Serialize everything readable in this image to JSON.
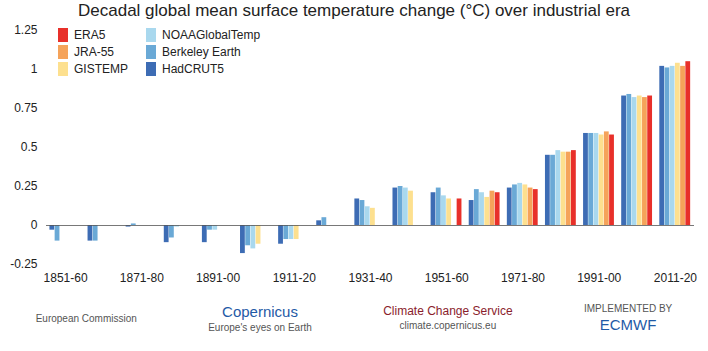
{
  "chart_data": {
    "type": "bar",
    "title": "Decadal global mean surface temperature change (°C) over industrial era",
    "categories": [
      "1851-60",
      null,
      "1871-80",
      null,
      "1891-00",
      null,
      "1911-20",
      null,
      "1931-40",
      null,
      "1951-60",
      null,
      "1971-80",
      null,
      "1991-00",
      null,
      "2011-20"
    ],
    "series": [
      {
        "name": "HadCRUT5",
        "color": "#3d6cb4",
        "values": [
          -0.03,
          -0.1,
          -0.01,
          -0.11,
          -0.11,
          -0.18,
          -0.12,
          0.03,
          0.17,
          0.24,
          0.21,
          0.16,
          0.24,
          0.45,
          0.59,
          0.83,
          1.02
        ]
      },
      {
        "name": "Berkeley Earth",
        "color": "#6aa9d6",
        "values": [
          -0.1,
          -0.1,
          0.01,
          -0.08,
          -0.03,
          -0.13,
          -0.09,
          0.05,
          0.16,
          0.25,
          0.24,
          0.23,
          0.26,
          0.45,
          0.59,
          0.84,
          1.01
        ]
      },
      {
        "name": "NOAAGlobalTemp",
        "color": "#a9d8ee",
        "values": [
          null,
          null,
          null,
          -0.01,
          -0.03,
          -0.15,
          -0.09,
          0,
          0.12,
          0.24,
          0.19,
          0.21,
          0.27,
          0.48,
          0.59,
          0.82,
          1.02
        ]
      },
      {
        "name": "GISTEMP",
        "color": "#fde08f",
        "values": [
          null,
          null,
          null,
          null,
          null,
          -0.12,
          -0.09,
          0,
          0.11,
          0.22,
          0.17,
          0.18,
          0.26,
          0.47,
          0.58,
          0.83,
          1.04
        ]
      },
      {
        "name": "JRA-55",
        "color": "#f5a35a",
        "values": [
          null,
          null,
          null,
          null,
          null,
          null,
          null,
          null,
          null,
          null,
          null,
          0.22,
          0.24,
          0.47,
          0.6,
          0.82,
          1.02
        ]
      },
      {
        "name": "ERA5",
        "color": "#e8302a",
        "values": [
          null,
          null,
          null,
          null,
          null,
          null,
          null,
          null,
          null,
          null,
          0.17,
          0.21,
          0.23,
          0.48,
          0.58,
          0.83,
          1.05
        ]
      }
    ],
    "ylim": [
      -0.25,
      1.25
    ],
    "yticks": [
      -0.25,
      0,
      0.25,
      0.5,
      0.75,
      1,
      1.25
    ],
    "grid": false,
    "legend": "top-left",
    "annotations": [
      "European Commission",
      "Copernicus",
      "Europe's eyes on Earth",
      "Climate Change Service",
      "climate.copernicus.eu",
      "IMPLEMENTED BY",
      "ECMWF"
    ]
  }
}
